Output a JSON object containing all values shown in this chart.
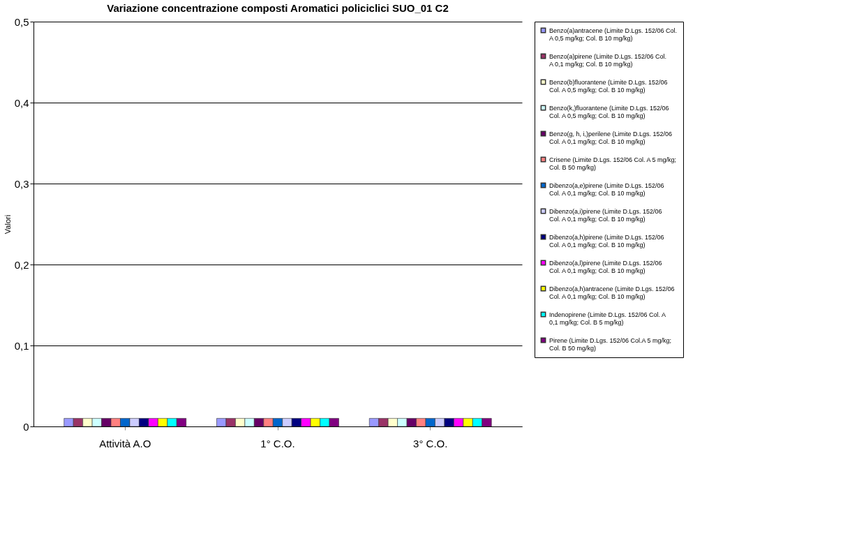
{
  "chart_data": {
    "type": "bar",
    "title": "Variazione concentrazione composti Aromatici policiclici  SUO_01 C2",
    "ylabel": "Valori",
    "categories": [
      "Attività A.O",
      "1°  C.O.",
      "3°  C.O."
    ],
    "ylim": [
      0,
      0.5
    ],
    "yticks": [
      {
        "value": 0,
        "label": "0"
      },
      {
        "value": 0.1,
        "label": "0,1"
      },
      {
        "value": 0.2,
        "label": "0,2"
      },
      {
        "value": 0.3,
        "label": "0,3"
      },
      {
        "value": 0.4,
        "label": "0,4"
      },
      {
        "value": 0.5,
        "label": "0,5"
      }
    ],
    "grid": "y",
    "legend": "right",
    "series": [
      {
        "name": "Benzo(a)antracene (Limite D.Lgs. 152/06 Col. A 0,5 mg/kg; Col. B 10 mg/kg)",
        "color": "#9999ff",
        "values": [
          0.01,
          0.01,
          0.01
        ]
      },
      {
        "name": "Benzo(a)pirene (Limite D.Lgs. 152/06 Col. A 0,1 mg/kg; Col. B 10 mg/kg)",
        "color": "#993366",
        "values": [
          0.01,
          0.01,
          0.01
        ]
      },
      {
        "name": "Benzo(b)fluorantene (Limite D.Lgs. 152/06 Col. A 0,5 mg/kg; Col. B 10 mg/kg)",
        "color": "#ffffcc",
        "values": [
          0.01,
          0.01,
          0.01
        ]
      },
      {
        "name": "Benzo(k,)fluorantene (Limite D.Lgs. 152/06 Col. A 0,5 mg/kg; Col. B 10 mg/kg)",
        "color": "#ccffff",
        "values": [
          0.01,
          0.01,
          0.01
        ]
      },
      {
        "name": "Benzo(g, h, i,)perilene (Limite D.Lgs. 152/06 Col. A 0,1 mg/kg; Col. B 10 mg/kg)",
        "color": "#660066",
        "values": [
          0.01,
          0.01,
          0.01
        ]
      },
      {
        "name": "Crisene (Limite D.Lgs. 152/06 Col. A 5 mg/kg; Col. B 50 mg/kg)",
        "color": "#ff8080",
        "values": [
          0.01,
          0.01,
          0.01
        ]
      },
      {
        "name": "Dibenzo(a,e)pirene (Limite D.Lgs. 152/06 Col. A 0,1 mg/kg; Col. B 10 mg/kg)",
        "color": "#0066cc",
        "values": [
          0.01,
          0.01,
          0.01
        ]
      },
      {
        "name": "Dibenzo(a,i)pirene (Limite D.Lgs. 152/06 Col. A 0,1 mg/kg; Col. B 10 mg/kg)",
        "color": "#ccccff",
        "values": [
          0.01,
          0.01,
          0.01
        ]
      },
      {
        "name": "Dibenzo(a,h)pirene (Limite D.Lgs. 152/06 Col. A 0,1 mg/kg; Col. B 10 mg/kg)",
        "color": "#000080",
        "values": [
          0.01,
          0.01,
          0.01
        ]
      },
      {
        "name": "Dibenzo(a,l)pirene (Limite D.Lgs. 152/06 Col. A 0,1 mg/kg; Col. B 10 mg/kg)",
        "color": "#ff00ff",
        "values": [
          0.01,
          0.01,
          0.01
        ]
      },
      {
        "name": "Dibenzo(a,h)antracene (Limite D.Lgs. 152/06 Col. A 0,1 mg/kg; Col. B 10 mg/kg)",
        "color": "#ffff00",
        "values": [
          0.01,
          0.01,
          0.01
        ]
      },
      {
        "name": "Indenopirene (Limite D.Lgs. 152/06 Col. A 0,1 mg/kg; Col. B 5 mg/kg)",
        "color": "#00ffff",
        "values": [
          0.01,
          0.01,
          0.01
        ]
      },
      {
        "name": "Pirene (Limite D.Lgs. 152/06 Col.A 5 mg/kg; Col. B 50 mg/kg)",
        "color": "#800080",
        "values": [
          0.01,
          0.01,
          0.01
        ]
      }
    ]
  }
}
